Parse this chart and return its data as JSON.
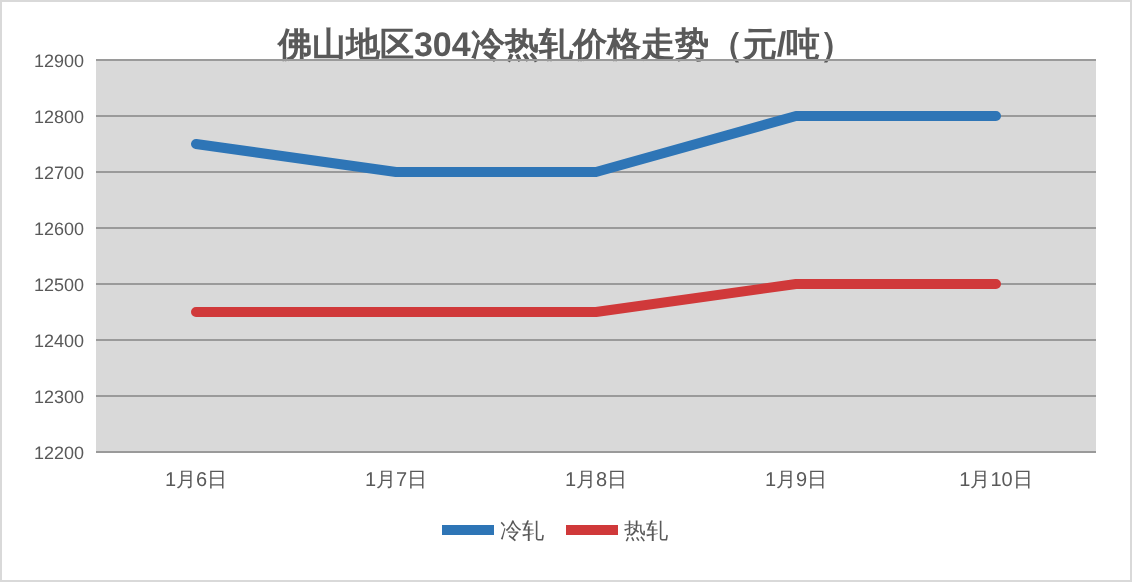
{
  "chart_data": {
    "type": "line",
    "title": "佛山地区304冷热轧价格走势（元/吨）",
    "categories": [
      "1月6日",
      "1月7日",
      "1月8日",
      "1月9日",
      "1月10日"
    ],
    "series": [
      {
        "name": "冷轧",
        "color": "#2e75b6",
        "values": [
          12750,
          12700,
          12700,
          12800,
          12800
        ]
      },
      {
        "name": "热轧",
        "color": "#d0393a",
        "values": [
          12450,
          12450,
          12450,
          12500,
          12500
        ]
      }
    ],
    "ylim": [
      12200,
      12900
    ],
    "yticks": [
      12200,
      12300,
      12400,
      12500,
      12600,
      12700,
      12800,
      12900
    ],
    "grid": "y",
    "legend": "bottom",
    "marker": "none",
    "line_style": "solid"
  }
}
